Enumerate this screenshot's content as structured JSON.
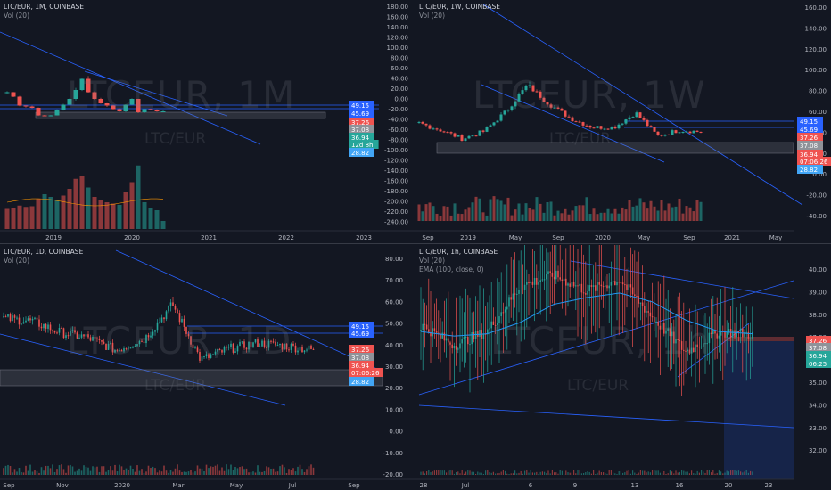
{
  "panes": [
    {
      "id": "p1",
      "title": "LTC/EUR, 1M, COINBASE",
      "vol": "Vol (20)",
      "ema": "",
      "watermark": "LTCEUR, 1M",
      "watermark_sub": "LTC/EUR",
      "yticks": [],
      "xticks": [
        "2019",
        "2020",
        "2021",
        "2022",
        "2023"
      ],
      "price_labels": [
        {
          "text": "49.15",
          "color": "#2962ff"
        },
        {
          "text": "45.69",
          "color": "#2962ff"
        },
        {
          "text": "37.26",
          "color": "#ef5350"
        },
        {
          "text": "37.08",
          "color": "#8f9299"
        },
        {
          "text": "36.94",
          "color": "#26a69a"
        },
        {
          "text": "12d 8h",
          "color": "#26a69a"
        },
        {
          "text": "28.82",
          "color": "#42a5f5"
        }
      ]
    },
    {
      "id": "p2",
      "title": "LTC/EUR, 1W, COINBASE",
      "vol": "Vol (20)",
      "ema": "",
      "watermark": "LTCEUR, 1W",
      "watermark_sub": "LTC/EUR",
      "yticks": [
        "160.00",
        "140.00",
        "120.00",
        "100.00",
        "80.00",
        "60.00",
        "40.00",
        "20.00",
        "0.00",
        "-20.00",
        "-40.00"
      ],
      "left_yticks": [
        "180.00",
        "160.00",
        "140.00",
        "120.00",
        "100.00",
        "80.00",
        "60.00",
        "40.00",
        "20.00",
        "0.00",
        "-20.00",
        "-40.00",
        "-60.00",
        "-80.00",
        "-100.00",
        "-120.00",
        "-140.00",
        "-160.00",
        "-180.00",
        "-200.00",
        "-220.00",
        "-240.00"
      ],
      "xticks": [
        "Sep",
        "2019",
        "May",
        "Sep",
        "2020",
        "May",
        "Sep",
        "2021",
        "May"
      ],
      "price_labels": [
        {
          "text": "49.15",
          "color": "#2962ff"
        },
        {
          "text": "45.69",
          "color": "#2962ff"
        },
        {
          "text": "37.26",
          "color": "#ef5350"
        },
        {
          "text": "37.08",
          "color": "#8f9299"
        },
        {
          "text": "36.94",
          "color": "#ef5350"
        },
        {
          "text": "07:06:26",
          "color": "#ef5350"
        },
        {
          "text": "28.82",
          "color": "#42a5f5"
        }
      ]
    },
    {
      "id": "p3",
      "title": "LTC/EUR, 1D, COINBASE",
      "vol": "Vol (20)",
      "ema": "",
      "watermark": "LTCEUR, 1D",
      "watermark_sub": "LTC/EUR",
      "yticks": [],
      "xticks": [
        "Sep",
        "Nov",
        "2020",
        "Mar",
        "May",
        "Jul",
        "Sep"
      ],
      "price_labels": [
        {
          "text": "49.15",
          "color": "#2962ff"
        },
        {
          "text": "45.69",
          "color": "#2962ff"
        },
        {
          "text": "37.26",
          "color": "#ef5350"
        },
        {
          "text": "37.08",
          "color": "#8f9299"
        },
        {
          "text": "36.94",
          "color": "#ef5350"
        },
        {
          "text": "07:06:26",
          "color": "#ef5350"
        },
        {
          "text": "28.82",
          "color": "#42a5f5"
        }
      ]
    },
    {
      "id": "p4",
      "title": "LTC/EUR, 1h, COINBASE",
      "vol": "Vol (20)",
      "ema": "EMA (100, close, 0)",
      "watermark": "LTCEUR, 1h",
      "watermark_sub": "LTC/EUR",
      "yticks": [
        "40.00",
        "39.00",
        "38.00",
        "37.00",
        "36.00",
        "35.00",
        "34.00",
        "33.00",
        "32.00"
      ],
      "left_yticks": [
        "80.00",
        "70.00",
        "60.00",
        "50.00",
        "40.00",
        "30.00",
        "20.00",
        "10.00",
        "0.00",
        "-10.00",
        "-20.00"
      ],
      "xticks": [
        "28",
        "Jul",
        "6",
        "9",
        "13",
        "16",
        "20",
        "23"
      ],
      "price_labels": [
        {
          "text": "37.26",
          "color": "#ef5350"
        },
        {
          "text": "37.08",
          "color": "#8f9299"
        },
        {
          "text": "36.94",
          "color": "#26a69a"
        },
        {
          "text": "06:25",
          "color": "#26a69a"
        }
      ]
    }
  ],
  "chart_data": [
    {
      "type": "candlestick",
      "title": "LTC/EUR, 1M, COINBASE",
      "x": [
        "2018-06",
        "2018-07",
        "2018-08",
        "2018-09",
        "2018-10",
        "2018-11",
        "2018-12",
        "2019-01",
        "2019-02",
        "2019-03",
        "2019-04",
        "2019-05",
        "2019-06",
        "2019-07",
        "2019-08",
        "2019-09",
        "2019-10",
        "2019-11",
        "2019-12",
        "2020-01",
        "2020-02",
        "2020-03",
        "2020-04",
        "2020-05",
        "2020-06",
        "2020-07"
      ],
      "close": [
        80,
        70,
        50,
        48,
        45,
        28,
        26,
        28,
        40,
        52,
        65,
        85,
        110,
        80,
        65,
        55,
        50,
        42,
        37,
        52,
        65,
        35,
        42,
        40,
        37,
        37.08
      ],
      "volume": [
        30,
        32,
        35,
        33,
        34,
        45,
        52,
        48,
        44,
        50,
        60,
        75,
        80,
        62,
        48,
        44,
        40,
        38,
        36,
        55,
        70,
        95,
        40,
        32,
        28,
        12
      ],
      "price_levels": [
        49.15,
        45.69,
        37.26,
        37.08,
        36.94,
        28.82
      ],
      "ylim": [
        0,
        200
      ]
    },
    {
      "type": "candlestick",
      "title": "LTC/EUR, 1W, COINBASE",
      "ylim": [
        -50,
        170
      ],
      "close_points": [
        [
          "2018-08",
          52
        ],
        [
          "2018-11",
          40
        ],
        [
          "2018-12",
          25
        ],
        [
          "2019-02",
          38
        ],
        [
          "2019-04",
          72
        ],
        [
          "2019-06",
          118
        ],
        [
          "2019-07",
          85
        ],
        [
          "2019-09",
          60
        ],
        [
          "2019-11",
          45
        ],
        [
          "2020-01",
          45
        ],
        [
          "2020-02",
          70
        ],
        [
          "2020-03",
          30
        ],
        [
          "2020-05",
          40
        ],
        [
          "2020-07",
          37.08
        ]
      ],
      "price_levels": [
        49.15,
        45.69,
        37.26,
        37.08,
        36.94,
        28.82
      ]
    },
    {
      "type": "candlestick",
      "title": "LTC/EUR, 1D, COINBASE",
      "ylim": [
        -25,
        85
      ],
      "close_points": [
        [
          "2019-08",
          60
        ],
        [
          "2019-09",
          58
        ],
        [
          "2019-10",
          50
        ],
        [
          "2019-11",
          46
        ],
        [
          "2019-12",
          37
        ],
        [
          "2020-01",
          45
        ],
        [
          "2020-02",
          70
        ],
        [
          "2020-03",
          30
        ],
        [
          "2020-04",
          38
        ],
        [
          "2020-05",
          42
        ],
        [
          "2020-06",
          40
        ],
        [
          "2020-07",
          37.08
        ]
      ],
      "price_levels": [
        49.15,
        45.69,
        37.26,
        37.08,
        36.94,
        28.82
      ]
    },
    {
      "type": "candlestick",
      "title": "LTC/EUR, 1h, COINBASE",
      "ylim": [
        32,
        40.6
      ],
      "close_points": [
        [
          "06-28",
          37.5
        ],
        [
          "07-02",
          36.6
        ],
        [
          "07-05",
          37.2
        ],
        [
          "07-07",
          39.2
        ],
        [
          "07-09",
          39.7
        ],
        [
          "07-11",
          39.0
        ],
        [
          "07-13",
          39.5
        ],
        [
          "07-14",
          37.8
        ],
        [
          "07-16",
          36.3
        ],
        [
          "07-18",
          37.2
        ],
        [
          "07-20",
          37.08
        ]
      ],
      "series": [
        {
          "name": "EMA (100, close, 0)",
          "values": [
            37.2,
            37.0,
            37.1,
            37.6,
            38.4,
            38.7,
            38.9,
            38.5,
            37.7,
            37.2,
            37.1
          ]
        }
      ],
      "price_levels": [
        37.26,
        37.08,
        36.94
      ]
    }
  ]
}
